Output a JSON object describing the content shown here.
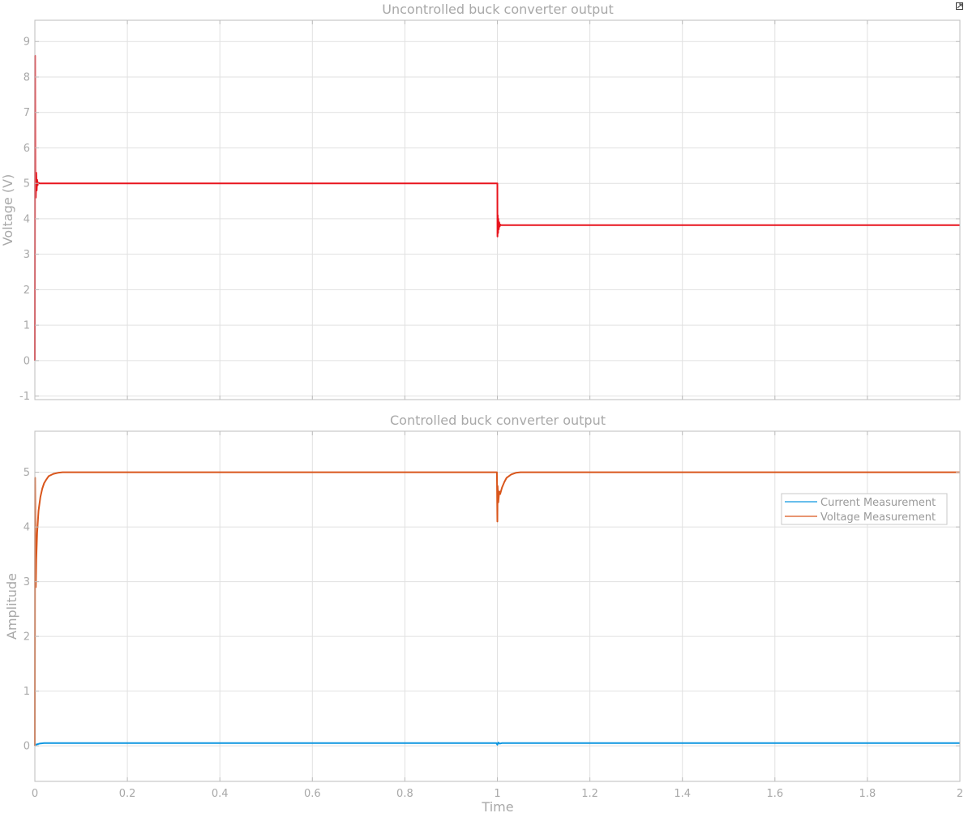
{
  "chart_data": [
    {
      "type": "line",
      "title": "Uncontrolled buck converter output",
      "xlabel": "",
      "ylabel": "Voltage (V)",
      "xlim": [
        0,
        2
      ],
      "ylim": [
        -1.1,
        9.6
      ],
      "xticks": [
        0,
        0.2,
        0.4,
        0.6,
        0.8,
        1,
        1.2,
        1.4,
        1.6,
        1.8,
        2
      ],
      "show_x_tick_labels": false,
      "yticks": [
        -1,
        0,
        1,
        2,
        3,
        4,
        5,
        6,
        7,
        8,
        9
      ],
      "ytick_labels": [
        "-1",
        "0",
        "1",
        "2",
        "3",
        "4",
        "5",
        "6",
        "7",
        "8",
        "9"
      ],
      "grid": true,
      "legend": false,
      "series": [
        {
          "color": "#e8141d",
          "x": [
            0,
            0.0005,
            0.001,
            0.002,
            0.003,
            0.004,
            0.005,
            0.006,
            0.007,
            0.01,
            1.0,
            1.0002,
            1.0008,
            1.0015,
            1.002,
            1.003,
            1.004,
            1.005,
            1.006,
            1.008,
            2.0
          ],
          "y": [
            0,
            8.6,
            5.3,
            4.6,
            5.3,
            4.8,
            5.1,
            4.95,
            5.02,
            5.0,
            5.0,
            3.5,
            4.1,
            3.6,
            4.0,
            3.7,
            3.9,
            3.78,
            3.84,
            3.82,
            3.82
          ]
        }
      ]
    },
    {
      "type": "line",
      "title": "Controlled buck converter output",
      "xlabel": "Time",
      "ylabel": "Amplitude",
      "xlim": [
        0,
        2
      ],
      "ylim": [
        -0.65,
        5.75
      ],
      "xticks": [
        0,
        0.2,
        0.4,
        0.6,
        0.8,
        1,
        1.2,
        1.4,
        1.6,
        1.8,
        2
      ],
      "xtick_labels": [
        "0",
        "0.2",
        "0.4",
        "0.6",
        "0.8",
        "1",
        "1.2",
        "1.4",
        "1.6",
        "1.8",
        "2"
      ],
      "yticks": [
        0,
        1,
        2,
        3,
        4,
        5
      ],
      "ytick_labels": [
        "0",
        "1",
        "2",
        "3",
        "4",
        "5"
      ],
      "grid": true,
      "legend": "right",
      "series": [
        {
          "name": "Current Measurement",
          "color": "#0d96e0",
          "x": [
            0,
            0.002,
            0.01,
            0.02,
            0.998,
            1.0,
            1.002,
            1.005,
            1.01,
            2.0
          ],
          "y": [
            0.0,
            0.02,
            0.04,
            0.05,
            0.05,
            0.02,
            0.06,
            0.04,
            0.05,
            0.05
          ]
        },
        {
          "name": "Voltage Measurement",
          "color": "#d9561c",
          "x": [
            0,
            0.0005,
            0.002,
            0.003,
            0.005,
            0.008,
            0.012,
            0.016,
            0.02,
            0.025,
            0.03,
            0.04,
            0.05,
            0.06,
            0.07,
            0.999,
            1.0,
            1.0005,
            1.002,
            1.004,
            1.006,
            1.01,
            1.015,
            1.02,
            1.03,
            1.04,
            1.05,
            2.0
          ],
          "y": [
            0.0,
            4.9,
            2.9,
            3.4,
            3.9,
            4.3,
            4.55,
            4.7,
            4.8,
            4.87,
            4.93,
            4.97,
            4.99,
            5.0,
            5.0,
            5.0,
            4.1,
            4.75,
            4.45,
            4.65,
            4.6,
            4.72,
            4.82,
            4.9,
            4.96,
            4.99,
            5.0,
            5.0
          ]
        }
      ]
    }
  ]
}
